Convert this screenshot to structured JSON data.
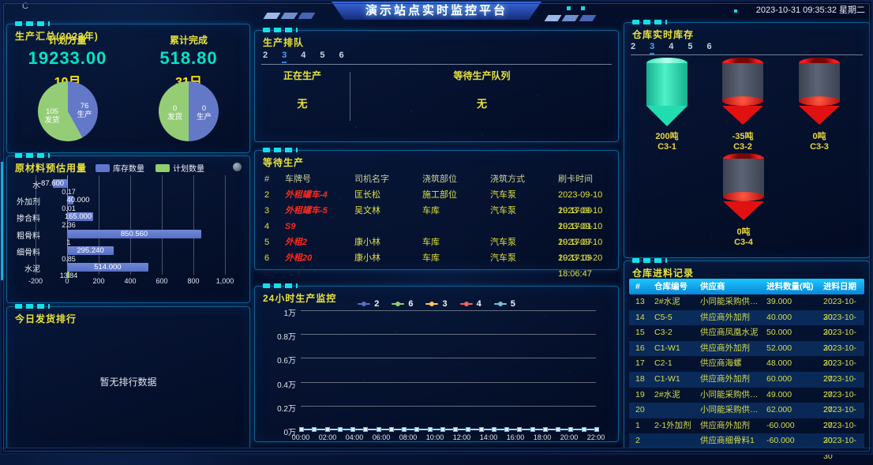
{
  "header": {
    "corner_glyph": "C",
    "title": "演示站点实时监控平台",
    "datetime": "2023-10-31 09:35:32 星期二"
  },
  "production_summary": {
    "title": "生产汇总(2023年)",
    "plan_label": "计划方量",
    "plan_value": "19233.00",
    "done_label": "累计完成",
    "done_value": "518.80",
    "month_label": "10月",
    "day_label": "31日"
  },
  "material_panel": {
    "title": "原材料预估用量",
    "legend_stock": "库存数量",
    "legend_plan": "计划数量"
  },
  "shipping_rank": {
    "title": "今日发货排行",
    "empty_text": "暂无排行数据"
  },
  "production_queue": {
    "title": "生产排队",
    "tabs": [
      "2",
      "3",
      "4",
      "5",
      "6"
    ],
    "active_tab": "3",
    "producing_label": "正在生产",
    "producing_value": "无",
    "waiting_label": "等待生产队列",
    "waiting_value": "无"
  },
  "waiting_production": {
    "title": "等待生产",
    "columns": [
      "#",
      "车牌号",
      "司机名字",
      "浇筑部位",
      "浇筑方式",
      "刷卡时间"
    ],
    "rows": [
      [
        "2",
        "外租罐车-4",
        "匡长松",
        "施工部位",
        "汽车泵",
        "2023-09-10 19:17:00"
      ],
      [
        "3",
        "外租罐车-5",
        "吴文林",
        "车库",
        "汽车泵",
        "2023-09-10 19:17:01"
      ],
      [
        "4",
        "S9",
        "",
        "",
        "",
        "2023-09-10 19:17:07"
      ],
      [
        "5",
        "外租2",
        "康小林",
        "车库",
        "汽车泵",
        "2023-09-10 19:17:09"
      ],
      [
        "6",
        "外租20",
        "康小林",
        "车库",
        "汽车泵",
        "2023-10-20 18:06:47"
      ]
    ]
  },
  "monitor_24h": {
    "title": "24小时生产监控"
  },
  "warehouse_stock": {
    "title": "仓库实时库存",
    "tabs": [
      "2",
      "3",
      "4",
      "5",
      "6"
    ],
    "active_tab": "3",
    "silos": [
      {
        "value": "200吨",
        "name": "C3-1",
        "state": "full"
      },
      {
        "value": "-35吨",
        "name": "C3-2",
        "state": "empty"
      },
      {
        "value": "0吨",
        "name": "C3-3",
        "state": "empty"
      },
      {
        "value": "0吨",
        "name": "C3-4",
        "state": "empty"
      }
    ]
  },
  "feed_records": {
    "title": "仓库进料记录",
    "columns": [
      "#",
      "仓库编号",
      "供应商",
      "进料数量(吨)",
      "进料日期"
    ],
    "rows": [
      [
        "13",
        "2#水泥",
        "小同能采购供…",
        "39.000",
        "2023-10-30"
      ],
      [
        "14",
        "C5-5",
        "供应商外加剂",
        "40.000",
        "2023-10-30"
      ],
      [
        "15",
        "C3-2",
        "供应商凤凰水泥",
        "50.000",
        "2023-10-30"
      ],
      [
        "16",
        "C1-W1",
        "供应商外加剂",
        "52.000",
        "2023-10-30"
      ],
      [
        "17",
        "C2-1",
        "供应商海螺",
        "48.000",
        "2023-10-27"
      ],
      [
        "18",
        "C1-W1",
        "供应商外加剂",
        "60.000",
        "2023-10-27"
      ],
      [
        "19",
        "2#水泥",
        "小同能采购供…",
        "49.000",
        "2023-10-27"
      ],
      [
        "20",
        "",
        "小同能采购供…",
        "62.000",
        "2023-10-27"
      ],
      [
        "1",
        "2-1外加剂",
        "供应商外加剂",
        "-60.000",
        "2023-10-30"
      ],
      [
        "2",
        "",
        "供应商细骨料1",
        "-60.000",
        "2023-10-30"
      ]
    ]
  },
  "chart_data": [
    {
      "id": "month_pie",
      "type": "pie",
      "title": "10月",
      "series": [
        {
          "name": "生产",
          "value": 76,
          "color": "#6478c8"
        },
        {
          "name": "发货",
          "value": 105,
          "color": "#95cd77"
        }
      ]
    },
    {
      "id": "day_pie",
      "type": "pie",
      "title": "31日",
      "series": [
        {
          "name": "生产",
          "value": 0,
          "color": "#6478c8"
        },
        {
          "name": "发货",
          "value": 0,
          "color": "#95cd77"
        }
      ]
    },
    {
      "id": "material_usage",
      "type": "bar",
      "orientation": "horizontal",
      "title": "原材料预估用量",
      "categories": [
        "水",
        "外加剂",
        "掺合料",
        "粗骨料",
        "细骨料",
        "水泥"
      ],
      "series": [
        {
          "name": "库存数量",
          "color": "#6077ce",
          "values": [
            -87.6,
            40,
            165,
            850.56,
            295.24,
            514
          ],
          "labels": [
            "-87.600",
            "40.000",
            "165.000",
            "850.560",
            "295.240",
            "514.000"
          ]
        },
        {
          "name": "计划数量",
          "color": "#8fd06b",
          "values": [
            0.17,
            0.01,
            2.36,
            1,
            0.85,
            13.84
          ],
          "labels": [
            "0.17",
            "0.01",
            "2.36",
            "1",
            "0.85",
            "13.84"
          ]
        }
      ],
      "xlim": [
        -200,
        1000
      ],
      "xticks": [
        "-200",
        "0",
        "200",
        "400",
        "600",
        "800",
        "1,000"
      ]
    },
    {
      "id": "monitor_24h",
      "type": "line",
      "title": "24小时生产监控",
      "legend": [
        "2",
        "6",
        "3",
        "4",
        "5"
      ],
      "legend_colors": [
        "#5470c6",
        "#91cc75",
        "#fac858",
        "#ee6666",
        "#73c0de"
      ],
      "x": [
        "00:00",
        "02:00",
        "04:00",
        "06:00",
        "08:00",
        "10:00",
        "12:00",
        "14:00",
        "16:00",
        "18:00",
        "20:00",
        "22:00"
      ],
      "yticks": [
        "0万",
        "0.2万",
        "0.4万",
        "0.6万",
        "0.8万",
        "1万"
      ],
      "ylim": [
        0,
        10000
      ],
      "series": [
        {
          "name": "2",
          "color": "#5470c6",
          "value_constant": 0
        },
        {
          "name": "6",
          "color": "#91cc75",
          "value_constant": 0
        },
        {
          "name": "3",
          "color": "#fac858",
          "value_constant": 0
        },
        {
          "name": "4",
          "color": "#ee6666",
          "value_constant": 0
        },
        {
          "name": "5",
          "color": "#73c0de",
          "value_constant": 0
        }
      ]
    }
  ]
}
